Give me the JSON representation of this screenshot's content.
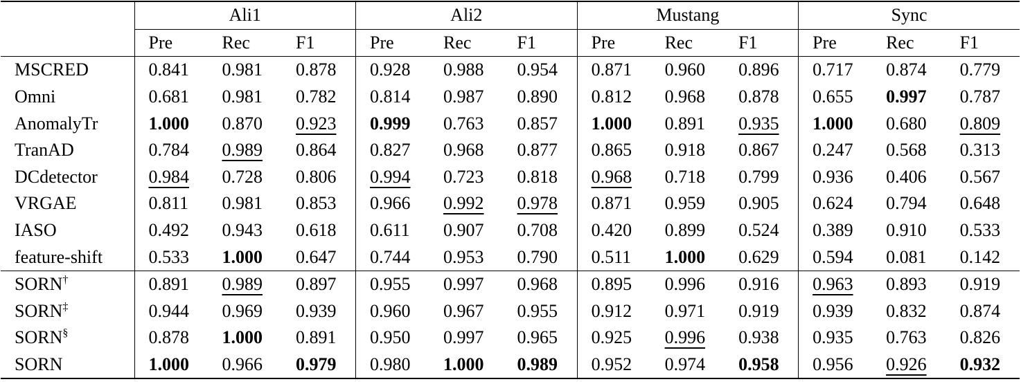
{
  "table": {
    "groups": [
      "Ali1",
      "Ali2",
      "Mustang",
      "Sync"
    ],
    "subheaders": [
      "Pre",
      "Rec",
      "F1"
    ],
    "sections": [
      [
        {
          "name": "MSCRED",
          "cells": [
            "0.841",
            "0.981",
            "0.878",
            "0.928",
            "0.988",
            "0.954",
            "0.871",
            "0.960",
            "0.896",
            "0.717",
            "0.874",
            "0.779"
          ]
        },
        {
          "name": "Omni",
          "cells": [
            "0.681",
            "0.981",
            "0.782",
            "0.814",
            "0.987",
            "0.890",
            "0.812",
            "0.968",
            "0.878",
            "0.655",
            {
              "text": "0.997",
              "style": "bold"
            },
            "0.787"
          ]
        },
        {
          "name": "AnomalyTr",
          "cells": [
            {
              "text": "1.000",
              "style": "bold"
            },
            "0.870",
            {
              "text": "0.923",
              "style": "underline"
            },
            {
              "text": "0.999",
              "style": "bold"
            },
            "0.763",
            "0.857",
            {
              "text": "1.000",
              "style": "bold"
            },
            "0.891",
            {
              "text": "0.935",
              "style": "underline"
            },
            {
              "text": "1.000",
              "style": "bold"
            },
            "0.680",
            {
              "text": "0.809",
              "style": "underline"
            }
          ]
        },
        {
          "name": "TranAD",
          "cells": [
            "0.784",
            {
              "text": "0.989",
              "style": "underline"
            },
            "0.864",
            "0.827",
            "0.968",
            "0.877",
            "0.865",
            "0.918",
            "0.867",
            "0.247",
            "0.568",
            "0.313"
          ]
        },
        {
          "name": "DCdetector",
          "cells": [
            {
              "text": "0.984",
              "style": "underline"
            },
            "0.728",
            "0.806",
            {
              "text": "0.994",
              "style": "underline"
            },
            "0.723",
            "0.818",
            {
              "text": "0.968",
              "style": "underline"
            },
            "0.718",
            "0.799",
            "0.936",
            "0.406",
            "0.567"
          ]
        },
        {
          "name": "VRGAE",
          "cells": [
            "0.811",
            "0.981",
            "0.853",
            "0.966",
            {
              "text": "0.992",
              "style": "underline"
            },
            {
              "text": "0.978",
              "style": "underline"
            },
            "0.871",
            "0.959",
            "0.905",
            "0.624",
            "0.794",
            "0.648"
          ]
        },
        {
          "name": "IASO",
          "cells": [
            "0.492",
            "0.943",
            "0.618",
            "0.611",
            "0.907",
            "0.708",
            "0.420",
            "0.899",
            "0.524",
            "0.389",
            "0.910",
            "0.533"
          ]
        },
        {
          "name": "feature-shift",
          "cells": [
            "0.533",
            {
              "text": "1.000",
              "style": "bold"
            },
            "0.647",
            "0.744",
            "0.953",
            "0.790",
            "0.511",
            {
              "text": "1.000",
              "style": "bold"
            },
            "0.629",
            "0.594",
            "0.081",
            "0.142"
          ]
        }
      ],
      [
        {
          "name": "SORN",
          "mark": "†",
          "cells": [
            "0.891",
            {
              "text": "0.989",
              "style": "underline"
            },
            "0.897",
            "0.955",
            "0.997",
            "0.968",
            "0.895",
            "0.996",
            "0.916",
            {
              "text": "0.963",
              "style": "underline"
            },
            "0.893",
            "0.919"
          ]
        },
        {
          "name": "SORN",
          "mark": "‡",
          "cells": [
            "0.944",
            "0.969",
            "0.939",
            "0.960",
            "0.967",
            "0.955",
            "0.912",
            "0.971",
            "0.919",
            "0.939",
            "0.832",
            "0.874"
          ]
        },
        {
          "name": "SORN",
          "mark": "§",
          "cells": [
            "0.878",
            {
              "text": "1.000",
              "style": "bold"
            },
            "0.891",
            "0.950",
            "0.997",
            "0.965",
            "0.925",
            {
              "text": "0.996",
              "style": "underline"
            },
            "0.938",
            "0.935",
            "0.763",
            "0.826"
          ]
        },
        {
          "name": "SORN",
          "cells": [
            {
              "text": "1.000",
              "style": "bold"
            },
            "0.966",
            {
              "text": "0.979",
              "style": "bold"
            },
            "0.980",
            {
              "text": "1.000",
              "style": "bold"
            },
            {
              "text": "0.989",
              "style": "bold"
            },
            "0.952",
            "0.974",
            {
              "text": "0.958",
              "style": "bold"
            },
            "0.956",
            {
              "text": "0.926",
              "style": "underline"
            },
            {
              "text": "0.932",
              "style": "bold"
            }
          ]
        }
      ]
    ]
  }
}
